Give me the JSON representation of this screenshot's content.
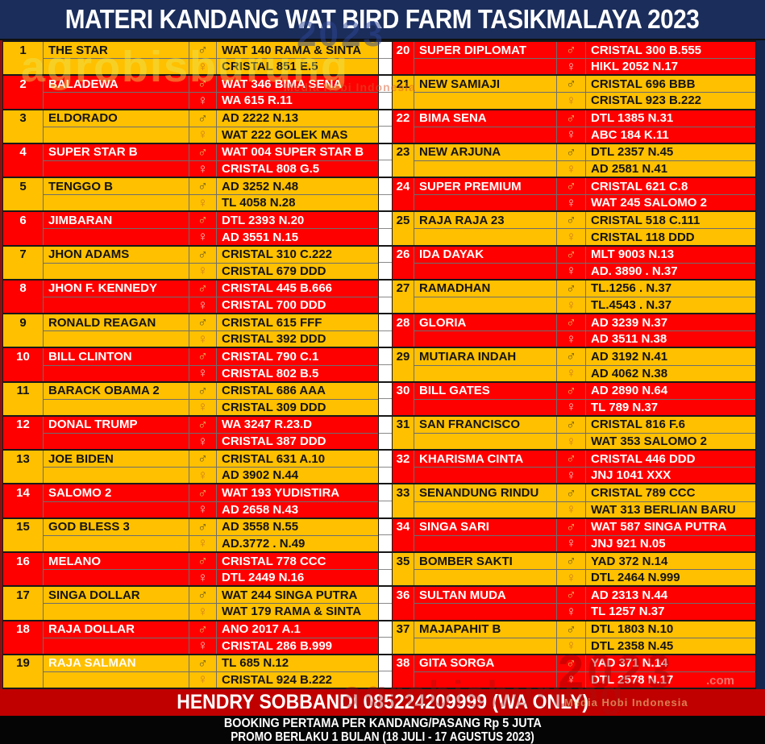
{
  "header": {
    "title": "MATERI KANDANG WAT BIRD FARM TASIKMALAYA 2023"
  },
  "symbols": {
    "male": "♂",
    "female": "♀"
  },
  "colors": {
    "gold_row": "#FFC000",
    "red_row": "#FE0000",
    "header_navy": "#1B2D5B",
    "footer_red": "#C00000",
    "footer_black": "#050505"
  },
  "entries": [
    {
      "no": "1",
      "name": "THE STAR",
      "male": "WAT 140 RAMA & SINTA",
      "female": "CRISTAL 851 E.5",
      "color": "gold"
    },
    {
      "no": "2",
      "name": "BALADEWA",
      "male": "WAT 346 BIMA SENA",
      "female": "WA 615 R.11",
      "color": "red"
    },
    {
      "no": "3",
      "name": "ELDORADO",
      "male": "AD 2222 N.13",
      "female": "WAT 222 GOLEK MAS",
      "color": "gold"
    },
    {
      "no": "4",
      "name": "SUPER STAR B",
      "male": "WAT 004 SUPER STAR B",
      "female": "CRISTAL 808 G.5",
      "color": "red"
    },
    {
      "no": "5",
      "name": "TENGGO B",
      "male": "AD 3252 N.48",
      "female": "TL 4058 N.28",
      "color": "gold"
    },
    {
      "no": "6",
      "name": "JIMBARAN",
      "male": "DTL 2393 N.20",
      "female": "AD 3551 N.15",
      "color": "red"
    },
    {
      "no": "7",
      "name": "JHON ADAMS",
      "male": "CRISTAL 310 C.222",
      "female": "CRISTAL 679 DDD",
      "color": "gold"
    },
    {
      "no": "8",
      "name": "JHON F. KENNEDY",
      "male": "CRISTAL 445 B.666",
      "female": "CRISTAL 700 DDD",
      "color": "red"
    },
    {
      "no": "9",
      "name": "RONALD REAGAN",
      "male": "CRISTAL 615 FFF",
      "female": "CRISTAL 392 DDD",
      "color": "gold"
    },
    {
      "no": "10",
      "name": "BILL CLINTON",
      "male": "CRISTAL 790 C.1",
      "female": "CRISTAL 802 B.5",
      "color": "red"
    },
    {
      "no": "11",
      "name": "BARACK OBAMA 2",
      "male": "CRISTAL 686 AAA",
      "female": "CRISTAL 309 DDD",
      "color": "gold"
    },
    {
      "no": "12",
      "name": "DONAL TRUMP",
      "male": "WA 3247 R.23.D",
      "female": "CRISTAL 387 DDD",
      "color": "red"
    },
    {
      "no": "13",
      "name": "JOE BIDEN",
      "male": "CRISTAL 631 A.10",
      "female": "AD 3902 N.44",
      "color": "gold"
    },
    {
      "no": "14",
      "name": "SALOMO 2",
      "male": "WAT 193 YUDISTIRA",
      "female": "AD 2658 N.43",
      "color": "red"
    },
    {
      "no": "15",
      "name": "GOD BLESS 3",
      "male": "AD 3558 N.55",
      "female": "AD.3772 . N.49",
      "color": "gold"
    },
    {
      "no": "16",
      "name": "MELANO",
      "male": "CRISTAL 778 CCC",
      "female": "DTL 2449 N.16",
      "color": "red"
    },
    {
      "no": "17",
      "name": "SINGA DOLLAR",
      "male": "WAT 244 SINGA PUTRA",
      "female": "WAT 179 RAMA & SINTA",
      "color": "gold"
    },
    {
      "no": "18",
      "name": "RAJA DOLLAR",
      "male": "ANO 2017 A.1",
      "female": "CRISTAL 286 B.999",
      "color": "red"
    },
    {
      "no": "19",
      "name": "RAJA SALMAN",
      "male": "TL 685 N.12",
      "female": "CRISTAL 924 B.222",
      "color": "gold",
      "name_white": true
    },
    {
      "no": "20",
      "name": "SUPER DIPLOMAT",
      "male": "CRISTAL 300 B.555",
      "female": "HIKL 2052 N.17",
      "color": "red"
    },
    {
      "no": "21",
      "name": "NEW SAMIAJI",
      "male": "CRISTAL 696 BBB",
      "female": "CRISTAL 923 B.222",
      "color": "gold"
    },
    {
      "no": "22",
      "name": "BIMA SENA",
      "male": "DTL 1385 N.31",
      "female": "ABC 184 K.11",
      "color": "red"
    },
    {
      "no": "23",
      "name": "NEW ARJUNA",
      "male": "DTL 2357 N.45",
      "female": "AD 2581 N.41",
      "color": "gold"
    },
    {
      "no": "24",
      "name": "SUPER PREMIUM",
      "male": "CRISTAL 621 C.8",
      "female": "WAT 245 SALOMO 2",
      "color": "red"
    },
    {
      "no": "25",
      "name": "RAJA RAJA 23",
      "male": "CRISTAL 518 C.111",
      "female": "CRISTAL 118 DDD",
      "color": "gold"
    },
    {
      "no": "26",
      "name": "IDA DAYAK",
      "male": "MLT 9003 N.13",
      "female": "AD. 3890 . N.37",
      "color": "red"
    },
    {
      "no": "27",
      "name": "RAMADHAN",
      "male": "TL.1256 . N.37",
      "female": "TL.4543 . N.37",
      "color": "gold"
    },
    {
      "no": "28",
      "name": "GLORIA",
      "male": "AD 3239 N.37",
      "female": "AD 3511 N.38",
      "color": "red"
    },
    {
      "no": "29",
      "name": "MUTIARA INDAH",
      "male": "AD 3192 N.41",
      "female": "AD 4062 N.38",
      "color": "gold"
    },
    {
      "no": "30",
      "name": "BILL GATES",
      "male": "AD 2890 N.64",
      "female": "TL 789 N.37",
      "color": "red"
    },
    {
      "no": "31",
      "name": "SAN FRANCISCO",
      "male": "CRISTAL 816 F.6",
      "female": "WAT 353 SALOMO 2",
      "color": "gold"
    },
    {
      "no": "32",
      "name": "KHARISMA CINTA",
      "male": "CRISTAL 446 DDD",
      "female": "JNJ 1041 XXX",
      "color": "red"
    },
    {
      "no": "33",
      "name": "SENANDUNG RINDU",
      "male": "CRISTAL 789 CCC",
      "female": "WAT 313 BERLIAN BARU",
      "color": "gold"
    },
    {
      "no": "34",
      "name": "SINGA SARI",
      "male": "WAT 587 SINGA PUTRA",
      "female": "JNJ 921 N.05",
      "color": "red"
    },
    {
      "no": "35",
      "name": "BOMBER SAKTI",
      "male": "YAD 372 N.14",
      "female": "DTL 2464 N.999",
      "color": "gold"
    },
    {
      "no": "36",
      "name": "SULTAN MUDA",
      "male": "AD 2313 N.44",
      "female": "TL 1257 N.37",
      "color": "red"
    },
    {
      "no": "37",
      "name": "MAJAPAHIT B",
      "male": "DTL 1803 N.10",
      "female": "DTL 2358 N.45",
      "color": "gold"
    },
    {
      "no": "38",
      "name": "GITA SORGA",
      "male": "YAD 371 N.14",
      "female": "DTL 2578 N.17",
      "color": "red"
    }
  ],
  "footer": {
    "contact": "HENDRY SOBBANDI 085224209999 (WA ONLY)",
    "line1": "BOOKING PERTAMA PER KANDANG/PASANG Rp 5 JUTA",
    "line2": "PROMO BERLAKU 1 BULAN (18 JULI - 17 AGUSTUS 2023)"
  },
  "watermarks": {
    "brand_top": "agrobisburung",
    "year_top": "2023",
    "tagline_top": "Media Hobi Indonesia",
    "brand_bottom": "agrobisburung",
    "year_bottom": "2023",
    "domain_bottom": ".com",
    "tagline_bottom": "Media Hobi Indonesia"
  }
}
